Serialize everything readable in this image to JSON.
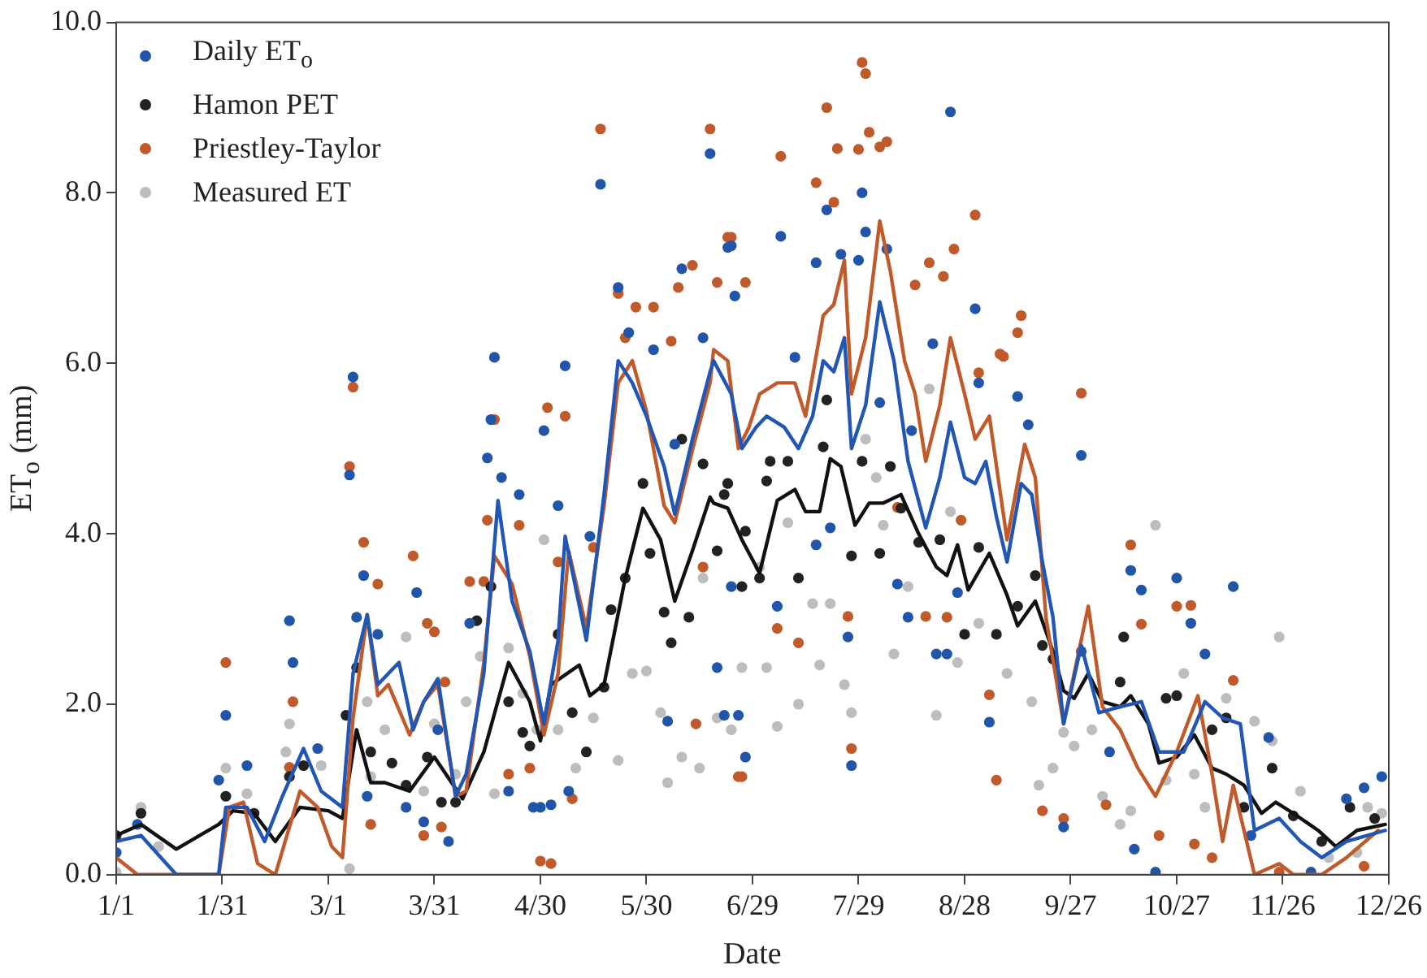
{
  "chart_data": {
    "type": "scatter",
    "xlabel": "Date",
    "ylabel": "ET$_{o}$ (mm)",
    "legend": "top left",
    "marker": "circle",
    "line_style": "solid",
    "xlim": [
      "--01-01",
      "--12-26"
    ],
    "xticks": [
      {
        "value": "--01-01",
        "label": "1/1"
      },
      {
        "value": "--01-31",
        "label": "1/31"
      },
      {
        "value": "--03-01",
        "label": "3/1"
      },
      {
        "value": "--03-31",
        "label": "3/31"
      },
      {
        "value": "--04-30",
        "label": "4/30"
      },
      {
        "value": "--05-30",
        "label": "5/30"
      },
      {
        "value": "--06-29",
        "label": "6/29"
      },
      {
        "value": "--07-29",
        "label": "7/29"
      },
      {
        "value": "--08-28",
        "label": "8/28"
      },
      {
        "value": "--09-27",
        "label": "9/27"
      },
      {
        "value": "--10-27",
        "label": "10/27"
      },
      {
        "value": "--11-26",
        "label": "11/26"
      },
      {
        "value": "--12-26",
        "label": "12/26"
      }
    ],
    "ylim": [
      0,
      10
    ],
    "yticks": [
      {
        "value": 0,
        "label": "0.0"
      },
      {
        "value": 2,
        "label": "2.0"
      },
      {
        "value": 4,
        "label": "4.0"
      },
      {
        "value": 6,
        "label": "6.0"
      },
      {
        "value": 8,
        "label": "8.0"
      },
      {
        "value": 10,
        "label": "10.0"
      }
    ],
    "series": [
      {
        "name": "Daily ET$_{o}$",
        "color": "#2155aa",
        "x": [
          "--01-01",
          "--01-07",
          "--02-01",
          "--01-30",
          "--02-07",
          "--02-19",
          "--02-20",
          "--02-27",
          "--03-07",
          "--03-08",
          "--03-09",
          "--03-11",
          "--03-12",
          "--03-15",
          "--03-23",
          "--03-26",
          "--03-28",
          "--04-01",
          "--04-04",
          "--04-10",
          "--04-15",
          "--04-16",
          "--04-17",
          "--04-19",
          "--04-21",
          "--04-24",
          "--04-28",
          "--04-30",
          "--05-03",
          "--05-01",
          "--05-05",
          "--05-07",
          "--05-08",
          "--05-17",
          "--05-14",
          "--05-22",
          "--05-25",
          "--06-01",
          "--06-05",
          "--06-07",
          "--06-09",
          "--06-17",
          "--06-15",
          "--06-19",
          "--06-23",
          "--06-21",
          "--06-27",
          "--06-22",
          "--07-07",
          "--06-24",
          "--07-20",
          "--07-17",
          "--07-30",
          "--07-31",
          "--08-24",
          "--07-24",
          "--07-29",
          "--08-06",
          "--07-11",
          "--08-19",
          "--08-31",
          "--09-01",
          "--09-12",
          "--09-30",
          "--09-15",
          "--08-13",
          "--08-04",
          "--06-25",
          "--07-06",
          "--06-23",
          "--07-17",
          "--07-21",
          "--07-27",
          "--07-26",
          "--08-12",
          "--08-09",
          "--08-20",
          "--08-23",
          "--08-26",
          "--09-04",
          "--10-14",
          "--10-17",
          "--10-27",
          "--10-31",
          "--11-04",
          "--11-12",
          "--09-30",
          "--10-08",
          "--10-15",
          "--10-21",
          "--11-17",
          "--11-22",
          "--12-14",
          "--12-19",
          "--12-24",
          "--12-04",
          "--09-25"
        ],
        "values": [
          0.26,
          0.59,
          1.87,
          1.11,
          1.28,
          2.98,
          2.49,
          1.48,
          4.69,
          5.84,
          3.02,
          3.51,
          0.92,
          2.82,
          0.79,
          3.31,
          0.62,
          1.7,
          0.39,
          2.95,
          4.89,
          5.34,
          6.07,
          4.66,
          0.98,
          4.46,
          0.79,
          0.79,
          0.82,
          5.21,
          4.33,
          5.97,
          0.98,
          8.1,
          3.97,
          6.89,
          6.36,
          6.16,
          1.8,
          5.05,
          7.11,
          8.46,
          6.3,
          2.43,
          7.38,
          1.87,
          1.38,
          7.36,
          7.49,
          6.79,
          7.8,
          7.18,
          8.0,
          7.54,
          8.95,
          7.28,
          7.21,
          7.34,
          6.07,
          6.23,
          6.64,
          5.77,
          5.61,
          4.92,
          5.28,
          5.21,
          5.54,
          1.87,
          3.15,
          3.38,
          3.87,
          4.07,
          1.28,
          2.79,
          3.02,
          3.41,
          2.59,
          2.59,
          3.31,
          1.79,
          3.57,
          3.34,
          3.48,
          2.95,
          2.59,
          3.38,
          2.62,
          1.44,
          0.3,
          0.03,
          0.46,
          1.61,
          0.89,
          1.02,
          1.15,
          0.03,
          0.56
        ]
      },
      {
        "name": "Hamon PET",
        "color": "#222222",
        "x": [
          "--01-01",
          "--01-08",
          "--02-01",
          "--02-09",
          "--02-19",
          "--02-23",
          "--03-06",
          "--03-09",
          "--03-13",
          "--03-19",
          "--03-23",
          "--03-29",
          "--04-02",
          "--04-06",
          "--04-12",
          "--04-16",
          "--04-21",
          "--04-25",
          "--04-27",
          "--05-05",
          "--05-09",
          "--05-13",
          "--05-18",
          "--05-20",
          "--05-24",
          "--05-29",
          "--05-31",
          "--06-04",
          "--06-06",
          "--06-09",
          "--06-11",
          "--06-15",
          "--06-19",
          "--06-21",
          "--06-26",
          "--06-22",
          "--07-04",
          "--07-09",
          "--07-19",
          "--07-20",
          "--07-30",
          "--08-07",
          "--06-27",
          "--07-03",
          "--07-01",
          "--07-12",
          "--07-27",
          "--08-04",
          "--08-10",
          "--08-15",
          "--08-21",
          "--09-01",
          "--09-17",
          "--08-28",
          "--09-12",
          "--09-06",
          "--09-19",
          "--09-22",
          "--10-11",
          "--10-12",
          "--10-24",
          "--10-27",
          "--11-06",
          "--11-10",
          "--11-15",
          "--11-23",
          "--11-29",
          "--12-07",
          "--12-15",
          "--12-22"
        ],
        "values": [
          0.46,
          0.72,
          0.92,
          0.72,
          1.15,
          1.28,
          1.87,
          2.43,
          1.44,
          1.31,
          1.05,
          1.38,
          0.85,
          0.85,
          2.98,
          3.38,
          2.03,
          1.67,
          1.51,
          2.82,
          1.9,
          1.44,
          2.2,
          3.11,
          3.48,
          4.59,
          3.77,
          3.08,
          2.72,
          5.11,
          3.02,
          4.82,
          3.8,
          4.46,
          3.38,
          4.59,
          4.85,
          4.85,
          5.02,
          5.57,
          4.85,
          4.79,
          4.03,
          4.62,
          3.48,
          3.48,
          3.74,
          3.77,
          4.3,
          3.9,
          3.93,
          3.84,
          3.51,
          2.82,
          3.15,
          2.82,
          2.69,
          2.53,
          2.26,
          2.79,
          2.07,
          2.1,
          1.7,
          1.84,
          0.79,
          1.25,
          0.69,
          0.39,
          0.79,
          0.66
        ]
      },
      {
        "name": "Priestley-Taylor",
        "color": "#c15a2b",
        "x": [
          "--02-01",
          "--02-20",
          "--02-19",
          "--03-07",
          "--03-08",
          "--03-11",
          "--03-15",
          "--03-13",
          "--03-25",
          "--03-29",
          "--03-28",
          "--03-31",
          "--04-02",
          "--04-03",
          "--04-10",
          "--04-14",
          "--04-17",
          "--04-15",
          "--04-21",
          "--04-24",
          "--04-27",
          "--05-02",
          "--04-30",
          "--05-03",
          "--05-07",
          "--05-05",
          "--05-09",
          "--05-17",
          "--05-15",
          "--05-22",
          "--05-24",
          "--05-27",
          "--06-01",
          "--06-06",
          "--06-08",
          "--06-12",
          "--06-15",
          "--06-17",
          "--06-13",
          "--06-19",
          "--06-22",
          "--06-25",
          "--06-27",
          "--06-23",
          "--07-07",
          "--07-20",
          "--07-17",
          "--07-23",
          "--07-29",
          "--07-30",
          "--07-31",
          "--08-01",
          "--08-04",
          "--08-06",
          "--07-22",
          "--08-31",
          "--08-25",
          "--08-18",
          "--08-22",
          "--08-14",
          "--09-13",
          "--09-12",
          "--09-07",
          "--09-08",
          "--09-01",
          "--09-30",
          "--10-14",
          "--10-17",
          "--10-27",
          "--10-31",
          "--11-12",
          "--06-26",
          "--07-06",
          "--07-12",
          "--07-27",
          "--07-26",
          "--08-09",
          "--08-17",
          "--08-23",
          "--08-27",
          "--09-06",
          "--09-04",
          "--09-19",
          "--09-25",
          "--10-07",
          "--10-22",
          "--11-01",
          "--11-06",
          "--11-25",
          "--12-19"
        ],
        "values": [
          2.49,
          2.03,
          1.26,
          4.79,
          5.72,
          3.9,
          3.41,
          0.59,
          3.74,
          2.95,
          0.46,
          2.85,
          0.56,
          2.26,
          3.44,
          3.44,
          5.34,
          4.16,
          1.18,
          4.1,
          1.25,
          5.48,
          0.16,
          0.13,
          5.38,
          3.67,
          0.89,
          8.75,
          3.84,
          6.82,
          6.3,
          6.66,
          6.66,
          6.26,
          6.89,
          7.15,
          3.61,
          8.75,
          1.77,
          6.95,
          7.48,
          1.15,
          6.95,
          7.48,
          8.43,
          9.0,
          8.12,
          8.52,
          8.51,
          9.53,
          9.4,
          8.71,
          8.54,
          8.6,
          7.89,
          7.74,
          7.34,
          7.18,
          7.02,
          6.92,
          6.56,
          6.36,
          6.11,
          6.08,
          5.89,
          5.65,
          3.87,
          2.94,
          3.15,
          3.16,
          2.28,
          1.15,
          2.89,
          2.72,
          1.48,
          3.03,
          4.31,
          3.03,
          3.02,
          4.16,
          1.11,
          2.11,
          0.75,
          0.66,
          0.82,
          0.46,
          0.36,
          0.2,
          0.03,
          0.1
        ]
      },
      {
        "name": "Measured ET",
        "color": "#bdbdbd",
        "x": [
          "--01-01",
          "--01-08",
          "--01-13",
          "--02-01",
          "--02-07",
          "--02-18",
          "--02-19",
          "--02-28",
          "--03-07",
          "--03-12",
          "--03-13",
          "--03-17",
          "--03-23",
          "--03-28",
          "--03-31",
          "--04-06",
          "--04-09",
          "--04-13",
          "--04-17",
          "--04-21",
          "--04-25",
          "--04-29",
          "--05-01",
          "--05-05",
          "--05-10",
          "--05-15",
          "--05-22",
          "--05-26",
          "--05-30",
          "--06-03",
          "--06-05",
          "--06-09",
          "--06-14",
          "--06-15",
          "--06-19",
          "--06-23",
          "--06-26",
          "--07-01",
          "--07-03",
          "--07-06",
          "--07-09",
          "--07-12",
          "--07-16",
          "--07-18",
          "--07-21",
          "--07-27",
          "--07-25",
          "--07-31",
          "--08-03",
          "--08-05",
          "--08-08",
          "--08-12",
          "--08-20",
          "--08-18",
          "--08-24",
          "--08-26",
          "--09-01",
          "--09-09",
          "--09-16",
          "--09-18",
          "--09-22",
          "--09-25",
          "--09-28",
          "--10-03",
          "--10-06",
          "--10-11",
          "--10-14",
          "--10-21",
          "--10-24",
          "--10-29",
          "--11-01",
          "--11-04",
          "--11-10",
          "--11-18",
          "--11-23",
          "--11-25",
          "--12-01",
          "--12-09",
          "--12-17",
          "--12-20",
          "--12-24"
        ],
        "values": [
          0.03,
          0.79,
          0.33,
          1.25,
          0.95,
          1.44,
          1.77,
          1.28,
          0.07,
          2.03,
          1.15,
          1.7,
          2.79,
          0.98,
          1.77,
          1.18,
          2.03,
          2.56,
          0.95,
          2.66,
          2.13,
          1.7,
          3.93,
          1.7,
          1.25,
          1.84,
          1.34,
          2.36,
          2.39,
          1.9,
          1.08,
          1.38,
          1.25,
          3.48,
          1.84,
          1.7,
          2.43,
          3.61,
          2.43,
          1.74,
          4.13,
          2.0,
          3.18,
          2.46,
          3.18,
          1.9,
          2.23,
          5.11,
          4.66,
          4.1,
          2.59,
          3.38,
          1.87,
          5.7,
          4.26,
          2.49,
          2.95,
          2.36,
          2.03,
          1.05,
          1.25,
          1.67,
          1.51,
          1.7,
          0.92,
          0.59,
          0.75,
          4.1,
          1.11,
          2.36,
          1.18,
          0.79,
          2.07,
          1.8,
          1.57,
          2.79,
          0.98,
          0.2,
          0.26,
          0.79,
          0.72
        ]
      },
      {
        "type": "line",
        "marker": "none",
        "color": "#2256b4",
        "x": [
          "--01-01",
          "--01-08",
          "--01-18",
          "--01-30",
          "--02-01",
          "--02-07",
          "--02-12",
          "--02-17",
          "--02-23",
          "--02-28",
          "--03-05",
          "--03-08",
          "--03-12",
          "--03-15",
          "--03-21",
          "--03-25",
          "--03-28",
          "--04-01",
          "--04-06",
          "--04-09",
          "--04-14",
          "--04-18",
          "--04-22",
          "--04-27",
          "--05-01",
          "--05-05",
          "--05-07",
          "--05-13",
          "--05-18",
          "--05-22",
          "--05-26",
          "--05-30",
          "--06-04",
          "--06-07",
          "--06-12",
          "--06-17",
          "--06-18",
          "--06-23",
          "--06-26",
          "--06-30",
          "--07-03",
          "--07-08",
          "--07-12",
          "--07-16",
          "--07-19",
          "--07-22",
          "--07-25",
          "--07-27",
          "--07-31",
          "--08-04",
          "--08-08",
          "--08-12",
          "--08-17",
          "--08-21",
          "--08-24",
          "--08-28",
          "--08-31",
          "--09-03",
          "--09-06",
          "--09-09",
          "--09-13",
          "--09-16",
          "--09-19",
          "--09-22",
          "--09-25",
          "--09-30",
          "--10-05",
          "--10-11",
          "--10-17",
          "--10-22",
          "--10-29",
          "--11-04",
          "--11-09",
          "--11-14",
          "--11-18",
          "--11-25",
          "--12-01",
          "--12-07",
          "--12-14",
          "--12-25"
        ],
        "values": [
          0.39,
          0.46,
          0,
          0,
          0.79,
          0.79,
          0.39,
          0.92,
          1.48,
          0.98,
          0.79,
          2.36,
          3.05,
          2.23,
          2.49,
          1.7,
          2.03,
          2.3,
          0.92,
          1.18,
          2.36,
          4.39,
          3.21,
          2.62,
          1.77,
          2.75,
          3.97,
          2.75,
          4.46,
          6.03,
          5.77,
          5.38,
          4.79,
          4.23,
          5.11,
          5.9,
          6.03,
          5.64,
          5.0,
          5.25,
          5.38,
          5.25,
          5.0,
          5.38,
          6.03,
          5.9,
          6.3,
          5.0,
          5.51,
          6.72,
          6.03,
          4.85,
          4.07,
          4.66,
          5.31,
          4.66,
          4.59,
          4.85,
          4.2,
          3.67,
          4.59,
          4.46,
          3.67,
          3.02,
          1.77,
          2.69,
          1.9,
          1.97,
          2.03,
          1.44,
          1.44,
          2.03,
          1.84,
          1.77,
          0.52,
          0.66,
          0.39,
          0.2,
          0.39,
          0.52
        ]
      },
      {
        "type": "line",
        "marker": "none",
        "color": "#c15a2b",
        "x": [
          "--01-01",
          "--01-07",
          "--01-30",
          "--02-02",
          "--02-06",
          "--02-10",
          "--02-15",
          "--02-22",
          "--02-27",
          "--03-02",
          "--03-05",
          "--03-08",
          "--03-12",
          "--03-15",
          "--03-18",
          "--03-24",
          "--03-28",
          "--04-01",
          "--04-06",
          "--04-09",
          "--04-14",
          "--04-17",
          "--04-22",
          "--04-27",
          "--05-01",
          "--05-05",
          "--05-08",
          "--05-13",
          "--05-18",
          "--05-22",
          "--05-26",
          "--05-30",
          "--06-04",
          "--06-07",
          "--06-12",
          "--06-17",
          "--06-18",
          "--06-22",
          "--06-25",
          "--06-28",
          "--07-01",
          "--07-06",
          "--07-11",
          "--07-14",
          "--07-19",
          "--07-22",
          "--07-25",
          "--07-27",
          "--07-31",
          "--08-04",
          "--08-07",
          "--08-11",
          "--08-14",
          "--08-17",
          "--08-21",
          "--08-24",
          "--08-28",
          "--08-31",
          "--09-04",
          "--09-09",
          "--09-14",
          "--09-17",
          "--09-20",
          "--09-25",
          "--10-02",
          "--10-06",
          "--10-11",
          "--10-16",
          "--10-21",
          "--10-27",
          "--11-02",
          "--11-06",
          "--11-09",
          "--11-12",
          "--11-18",
          "--11-25",
          "--11-29",
          "--12-07",
          "--12-14",
          "--12-23"
        ],
        "values": [
          0.2,
          0,
          0,
          0.79,
          0.85,
          0.13,
          0,
          0.98,
          0.79,
          0.33,
          0.2,
          1.84,
          3.05,
          2.1,
          2.23,
          1.64,
          2.03,
          2.23,
          0.92,
          0.98,
          2.49,
          3.74,
          3.41,
          2.56,
          1.64,
          2.36,
          3.8,
          2.89,
          4.33,
          5.77,
          6.03,
          5.44,
          4.33,
          4.13,
          4.98,
          5.77,
          6.16,
          6.03,
          5.0,
          5.25,
          5.64,
          5.77,
          5.77,
          5.38,
          6.56,
          6.69,
          7.21,
          5.64,
          6.3,
          7.67,
          7.08,
          6.03,
          5.64,
          4.85,
          5.51,
          6.3,
          5.64,
          5.11,
          5.38,
          3.93,
          5.05,
          4.66,
          3.02,
          1.77,
          3.15,
          1.97,
          1.7,
          1.25,
          0.92,
          1.44,
          2.1,
          1.18,
          0.39,
          1.05,
          0,
          0.13,
          0,
          0,
          0.2,
          0.52
        ]
      },
      {
        "type": "line",
        "marker": "none",
        "color": "#111111",
        "x": [
          "--01-01",
          "--01-08",
          "--01-18",
          "--01-30",
          "--02-03",
          "--02-09",
          "--02-15",
          "--02-22",
          "--03-01",
          "--03-05",
          "--03-09",
          "--03-13",
          "--03-17",
          "--03-24",
          "--03-31",
          "--04-08",
          "--04-14",
          "--04-21",
          "--04-27",
          "--04-30",
          "--05-03",
          "--05-11",
          "--05-14",
          "--05-18",
          "--05-24",
          "--05-29",
          "--06-03",
          "--06-07",
          "--06-12",
          "--06-17",
          "--06-18",
          "--06-22",
          "--06-26",
          "--07-01",
          "--07-06",
          "--07-11",
          "--07-14",
          "--07-18",
          "--07-21",
          "--07-24",
          "--07-28",
          "--08-01",
          "--08-05",
          "--08-10",
          "--08-15",
          "--08-20",
          "--08-23",
          "--08-26",
          "--08-29",
          "--09-04",
          "--09-09",
          "--09-12",
          "--09-17",
          "--09-22",
          "--09-25",
          "--09-28",
          "--10-02",
          "--10-06",
          "--10-11",
          "--10-14",
          "--10-19",
          "--10-22",
          "--10-27",
          "--11-01",
          "--11-06",
          "--11-10",
          "--11-15",
          "--11-20",
          "--11-24",
          "--11-29",
          "--12-06",
          "--12-11",
          "--12-17",
          "--12-25"
        ],
        "values": [
          0.46,
          0.59,
          0.3,
          0.59,
          0.75,
          0.72,
          0.39,
          0.79,
          0.75,
          0.66,
          1.7,
          1.08,
          1.08,
          0.98,
          1.38,
          0.89,
          1.44,
          2.49,
          2.03,
          1.57,
          2.23,
          2.46,
          2.1,
          2.23,
          3.48,
          4.3,
          3.93,
          3.21,
          3.8,
          4.43,
          4.36,
          4.3,
          3.93,
          3.54,
          4.39,
          4.52,
          4.26,
          4.26,
          4.88,
          4.79,
          4.1,
          4.36,
          4.36,
          4.46,
          4.0,
          3.61,
          3.51,
          3.87,
          3.34,
          3.77,
          3.28,
          2.92,
          3.21,
          2.62,
          2.16,
          2.07,
          2.36,
          2.03,
          1.97,
          2.1,
          1.77,
          1.31,
          1.38,
          1.64,
          1.25,
          1.18,
          1.05,
          0.72,
          0.85,
          0.72,
          0.52,
          0.33,
          0.52,
          0.59
        ]
      }
    ]
  }
}
